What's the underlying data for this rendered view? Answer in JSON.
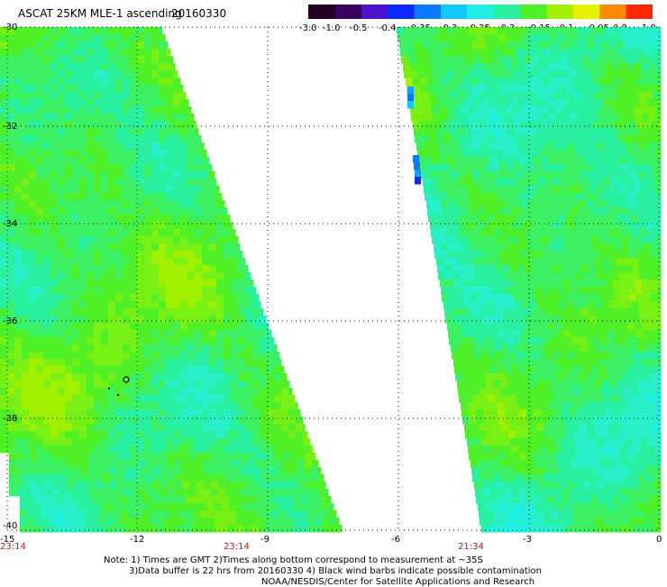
{
  "header": {
    "title": "ASCAT 25KM MLE-1 ascending",
    "date": "20160330"
  },
  "colorbar": {
    "labels": [
      "-3.0",
      "-1.0",
      "-0.5",
      "-0.4",
      "-0.35",
      "-0.3",
      "-0.25",
      "-0.2",
      "-0.15",
      "-0.1",
      "-0.05",
      "0.0",
      "1.0"
    ],
    "colors": [
      "#220022",
      "#3a0060",
      "#4b14c8",
      "#0a28ff",
      "#0a78ff",
      "#14c8ff",
      "#1ef0e6",
      "#28f0a0",
      "#50f028",
      "#a0f000",
      "#e6f000",
      "#ff8c00",
      "#ff2800"
    ]
  },
  "map": {
    "lat_labels": [
      "-30",
      "-32",
      "-34",
      "-36",
      "-38",
      "-40"
    ],
    "lon_labels": [
      "-15",
      "-12",
      "-9",
      "-6",
      "-3",
      "0"
    ],
    "time_labels": [
      "23:14",
      "23:14",
      "21:34"
    ]
  },
  "notes": {
    "line1": "Note: 1) Times are GMT 2)Times along bottom correspond to measurement at ~35S",
    "line2": "3)Data buffer is 22 hrs from 20160330 4) Black wind barbs indicate possible contamination",
    "line3": "NOAA/NESDIS/Center for Satellite Applications and Research"
  }
}
